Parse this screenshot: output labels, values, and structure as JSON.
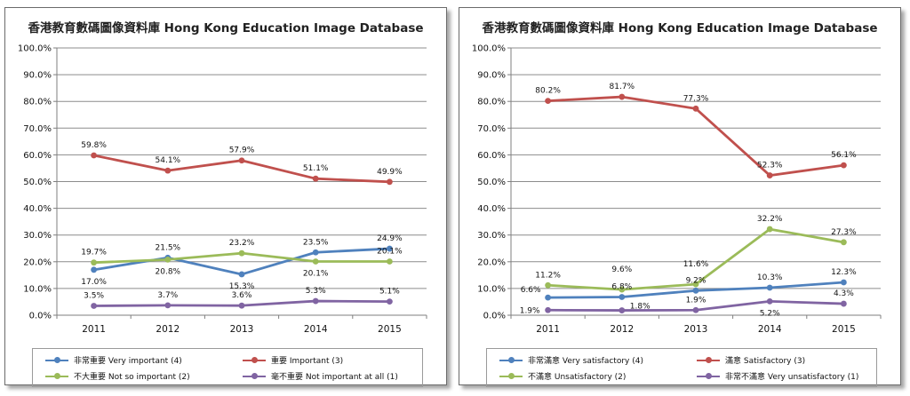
{
  "chart_data": [
    {
      "type": "line",
      "title": "香港教育數碼圖像資料庫  Hong Kong Education Image Database",
      "xlabel": "",
      "ylabel": "",
      "categories": [
        "2011",
        "2012",
        "2013",
        "2014",
        "2015"
      ],
      "ylim": [
        0,
        100
      ],
      "yticks": [
        "0.0%",
        "10.0%",
        "20.0%",
        "30.0%",
        "40.0%",
        "50.0%",
        "60.0%",
        "70.0%",
        "80.0%",
        "90.0%",
        "100.0%"
      ],
      "grid": true,
      "legend": "bottom",
      "series": [
        {
          "name": "非常重要 Very important (4)",
          "color": "#4f81bd",
          "values": [
            17.0,
            21.5,
            15.3,
            23.5,
            24.9
          ],
          "labels": [
            "17.0%",
            "21.5%",
            "15.3%",
            "23.5%",
            "24.9%"
          ],
          "label_pos": [
            "below",
            "above",
            "below",
            "above",
            "above"
          ]
        },
        {
          "name": "重要 Important (3)",
          "color": "#c0504d",
          "values": [
            59.8,
            54.1,
            57.9,
            51.1,
            49.9
          ],
          "labels": [
            "59.8%",
            "54.1%",
            "57.9%",
            "51.1%",
            "49.9%"
          ],
          "label_pos": [
            "above",
            "above",
            "above",
            "above",
            "above"
          ]
        },
        {
          "name": "不大重要 Not so important (2)",
          "color": "#9bbb59",
          "values": [
            19.7,
            20.8,
            23.2,
            20.1,
            20.1
          ],
          "labels": [
            "19.7%",
            "20.8%",
            "23.2%",
            "20.1%",
            "20.1%"
          ],
          "label_pos": [
            "above",
            "below",
            "above",
            "below",
            "above"
          ]
        },
        {
          "name": "毫不重要 Not important at all (1)",
          "color": "#8064a2",
          "values": [
            3.5,
            3.7,
            3.6,
            5.3,
            5.1
          ],
          "labels": [
            "3.5%",
            "3.7%",
            "3.6%",
            "5.3%",
            "5.1%"
          ],
          "label_pos": [
            "above",
            "above",
            "above",
            "above",
            "above"
          ]
        }
      ]
    },
    {
      "type": "line",
      "title": "香港教育數碼圖像資料庫  Hong Kong Education Image Database",
      "xlabel": "",
      "ylabel": "",
      "categories": [
        "2011",
        "2012",
        "2013",
        "2014",
        "2015"
      ],
      "ylim": [
        0,
        100
      ],
      "yticks": [
        "0.0%",
        "10.0%",
        "20.0%",
        "30.0%",
        "40.0%",
        "50.0%",
        "60.0%",
        "70.0%",
        "80.0%",
        "90.0%",
        "100.0%"
      ],
      "grid": true,
      "legend": "bottom",
      "series": [
        {
          "name": "非常滿意 Very satisfactory (4)",
          "color": "#4f81bd",
          "values": [
            6.6,
            6.8,
            9.2,
            10.3,
            12.3
          ],
          "labels": [
            "6.6%",
            "6.8%",
            "9.2%",
            "10.3%",
            "12.3%"
          ],
          "label_pos": [
            "above-left",
            "above",
            "above",
            "above",
            "above"
          ]
        },
        {
          "name": "滿意 Satisfactory (3)",
          "color": "#c0504d",
          "values": [
            80.2,
            81.7,
            77.3,
            52.3,
            56.1
          ],
          "labels": [
            "80.2%",
            "81.7%",
            "77.3%",
            "52.3%",
            "56.1%"
          ],
          "label_pos": [
            "above",
            "above",
            "above",
            "above",
            "above"
          ]
        },
        {
          "name": "不滿意 Unsatisfactory (2)",
          "color": "#9bbb59",
          "values": [
            11.2,
            9.6,
            11.6,
            32.2,
            27.3
          ],
          "labels": [
            "11.2%",
            "9.6%",
            "11.6%",
            "32.2%",
            "27.3%"
          ],
          "label_pos": [
            "above",
            "above2",
            "above2",
            "above",
            "above"
          ]
        },
        {
          "name": "非常不滿意 Very unsatisfactory (1)",
          "color": "#8064a2",
          "values": [
            1.9,
            1.8,
            1.9,
            5.2,
            4.3
          ],
          "labels": [
            "1.9%",
            "1.8%",
            "1.9%",
            "5.2%",
            "4.3%"
          ],
          "label_pos": [
            "left",
            "right",
            "above",
            "below",
            "above"
          ]
        }
      ]
    }
  ]
}
